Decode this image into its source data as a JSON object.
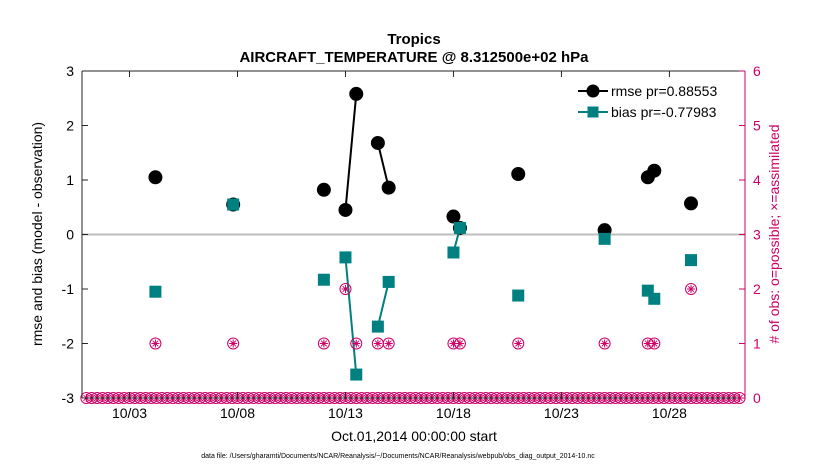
{
  "chart_data": {
    "type": "scatter",
    "title": "Tropics",
    "subtitle": "AIRCRAFT_TEMPERATURE @ 8.312500e+02 hPa",
    "xlabel": "Oct.01,2014 00:00:00 start",
    "ylabel": "rmse and bias (model - observation)",
    "y2label": "# of obs: o=possible; ×=assimilated",
    "footnote": "data file: /Users/gharamti/Documents/NCAR/Reanalysis/~/Documents/NCAR/Reanalysis/webpub/obs_diag_output_2014-10.nc",
    "xlim": [
      0.8,
      31.5
    ],
    "ylim": [
      -3,
      3
    ],
    "y2lim": [
      0,
      6
    ],
    "xticks": [
      3,
      8,
      13,
      18,
      23,
      28
    ],
    "xtick_labels": [
      "10/03",
      "10/08",
      "10/13",
      "10/18",
      "10/23",
      "10/28"
    ],
    "yticks": [
      -3,
      -2,
      -1,
      0,
      1,
      2,
      3
    ],
    "y2ticks": [
      0,
      1,
      2,
      3,
      4,
      5,
      6
    ],
    "zero_line": true,
    "grid": false,
    "legend_position": "top-right",
    "series": [
      {
        "name": "rmse",
        "legend": "rmse pr=0.88553",
        "color": "#000000",
        "marker": "circle",
        "x": [
          4.2,
          7.8,
          12.0,
          13.0,
          13.5,
          14.5,
          15.0,
          18.0,
          18.3,
          21.0,
          25.0,
          27.0,
          27.3,
          29.0
        ],
        "y": [
          1.05,
          0.55,
          0.82,
          0.45,
          2.58,
          1.68,
          0.86,
          0.33,
          0.12,
          1.11,
          0.08,
          1.05,
          1.17,
          0.57
        ]
      },
      {
        "name": "bias",
        "legend": "bias pr=-0.77983",
        "color": "#008080",
        "marker": "square",
        "x": [
          4.2,
          7.8,
          12.0,
          13.0,
          13.5,
          14.5,
          15.0,
          18.0,
          18.3,
          21.0,
          25.0,
          27.0,
          27.3,
          29.0
        ],
        "y": [
          -1.05,
          0.55,
          -0.83,
          -0.42,
          -2.57,
          -1.69,
          -0.87,
          -0.33,
          0.12,
          -1.12,
          -0.08,
          -1.03,
          -1.18,
          -0.47
        ]
      },
      {
        "name": "obs count",
        "axis": "right",
        "color": "#cc0066",
        "marker": "circle-star",
        "x": [
          4.2,
          7.8,
          12.0,
          13.0,
          13.5,
          14.5,
          15.0,
          18.0,
          18.3,
          21.0,
          25.0,
          27.0,
          27.3,
          29.0
        ],
        "y": [
          1,
          1,
          1,
          2,
          1,
          1,
          1,
          1,
          1,
          1,
          1,
          1,
          1,
          2
        ]
      }
    ]
  }
}
